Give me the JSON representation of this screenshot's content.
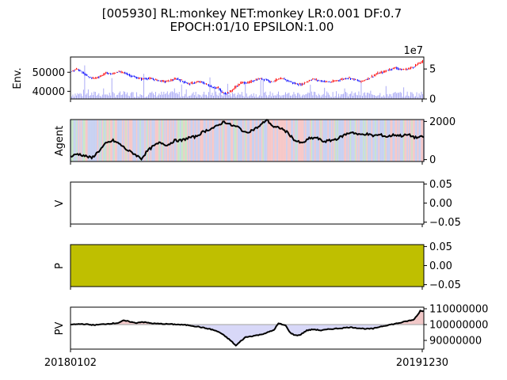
{
  "figure": {
    "title_line1": "[005930] RL:monkey NET:monkey LR:0.001 DF:0.7",
    "title_line2": "EPOCH:01/10 EPSILON:1.00",
    "x_start_label": "20180102",
    "x_end_label": "20191230"
  },
  "colors": {
    "candle_up": "#ff0000",
    "candle_down": "#0000ff",
    "volume": "#6666ee",
    "agent_line": "#000000",
    "buy_shade": "#f4b8b8",
    "sell_shade": "#b8c4ee",
    "hold_shade": "#b8e0b8",
    "policy_fill": "#bfbf00",
    "pv_above": "#f2c8c8",
    "pv_below": "#d8d8f8",
    "pv_base": "#b0b0b0"
  },
  "chart_data": [
    {
      "panel": "env",
      "type": "line",
      "ylabel": "Env.",
      "ylim": [
        36000,
        58000
      ],
      "yticks": [
        "50000",
        "40000"
      ],
      "ytick_values": [
        50000,
        40000
      ],
      "right_axis_offset": "1e7",
      "right_ylim": [
        0,
        7
      ],
      "right_yticks": [
        "5",
        "0"
      ],
      "right_ytick_values": [
        5,
        0
      ],
      "price_points": [
        [
          0,
          50500
        ],
        [
          5,
          51800
        ],
        [
          10,
          49800
        ],
        [
          15,
          47500
        ],
        [
          20,
          46800
        ],
        [
          25,
          47900
        ],
        [
          30,
          49700
        ],
        [
          35,
          49000
        ],
        [
          40,
          50300
        ],
        [
          45,
          49800
        ],
        [
          50,
          48400
        ],
        [
          55,
          47200
        ],
        [
          60,
          46500
        ],
        [
          65,
          46800
        ],
        [
          70,
          46300
        ],
        [
          75,
          45600
        ],
        [
          80,
          45100
        ],
        [
          85,
          45800
        ],
        [
          90,
          46600
        ],
        [
          95,
          45200
        ],
        [
          100,
          43900
        ],
        [
          105,
          44600
        ],
        [
          110,
          45000
        ],
        [
          115,
          43600
        ],
        [
          120,
          42100
        ],
        [
          125,
          41700
        ],
        [
          128,
          39400
        ],
        [
          131,
          38900
        ],
        [
          135,
          39800
        ],
        [
          140,
          42600
        ],
        [
          145,
          44700
        ],
        [
          150,
          44400
        ],
        [
          155,
          45700
        ],
        [
          160,
          46600
        ],
        [
          165,
          46300
        ],
        [
          170,
          44900
        ],
        [
          175,
          46200
        ],
        [
          180,
          46600
        ],
        [
          185,
          45200
        ],
        [
          190,
          44000
        ],
        [
          195,
          43500
        ],
        [
          200,
          45100
        ],
        [
          205,
          46500
        ],
        [
          210,
          45600
        ],
        [
          215,
          45200
        ],
        [
          220,
          44800
        ],
        [
          225,
          45600
        ],
        [
          230,
          46400
        ],
        [
          235,
          47100
        ],
        [
          240,
          46300
        ],
        [
          245,
          45000
        ],
        [
          250,
          46200
        ],
        [
          255,
          47800
        ],
        [
          260,
          49400
        ],
        [
          265,
          50200
        ],
        [
          270,
          51500
        ],
        [
          275,
          52400
        ],
        [
          280,
          51300
        ],
        [
          285,
          51700
        ],
        [
          290,
          52800
        ],
        [
          295,
          54800
        ],
        [
          299,
          55800
        ]
      ],
      "volume_peak_1e7": 5.6
    },
    {
      "panel": "agent",
      "type": "line",
      "ylabel": "Agent",
      "ylim": [
        -100,
        2100
      ],
      "yticks": [
        "2000",
        "0"
      ],
      "ytick_values": [
        2000,
        0
      ],
      "holdings_points": [
        [
          0,
          150
        ],
        [
          6,
          300
        ],
        [
          12,
          200
        ],
        [
          18,
          80
        ],
        [
          24,
          450
        ],
        [
          30,
          850
        ],
        [
          36,
          1000
        ],
        [
          42,
          800
        ],
        [
          48,
          500
        ],
        [
          54,
          300
        ],
        [
          60,
          50
        ],
        [
          65,
          450
        ],
        [
          70,
          700
        ],
        [
          76,
          900
        ],
        [
          82,
          750
        ],
        [
          88,
          1000
        ],
        [
          94,
          1000
        ],
        [
          100,
          1150
        ],
        [
          106,
          1200
        ],
        [
          112,
          1450
        ],
        [
          118,
          1600
        ],
        [
          124,
          1750
        ],
        [
          130,
          2000
        ],
        [
          136,
          1800
        ],
        [
          142,
          1700
        ],
        [
          148,
          1400
        ],
        [
          154,
          1550
        ],
        [
          160,
          1750
        ],
        [
          166,
          2100
        ],
        [
          172,
          1700
        ],
        [
          178,
          1650
        ],
        [
          184,
          1400
        ],
        [
          190,
          1000
        ],
        [
          196,
          850
        ],
        [
          202,
          1100
        ],
        [
          208,
          1150
        ],
        [
          214,
          950
        ],
        [
          220,
          1000
        ],
        [
          226,
          1100
        ],
        [
          232,
          1300
        ],
        [
          238,
          1450
        ],
        [
          244,
          1300
        ],
        [
          250,
          1350
        ],
        [
          256,
          1250
        ],
        [
          262,
          1300
        ],
        [
          268,
          1200
        ],
        [
          274,
          1300
        ],
        [
          280,
          1250
        ],
        [
          286,
          1300
        ],
        [
          292,
          1150
        ],
        [
          299,
          1200
        ]
      ]
    },
    {
      "panel": "value",
      "type": "line",
      "ylabel": "V",
      "ylim": [
        -0.055,
        0.055
      ],
      "yticks": [
        "0.05",
        "0.00",
        "−0.05"
      ],
      "ytick_values": [
        0.05,
        0,
        -0.05
      ],
      "values": []
    },
    {
      "panel": "policy",
      "type": "area",
      "ylabel": "P",
      "ylim": [
        -0.055,
        0.055
      ],
      "yticks": [
        "0.05",
        "0.00",
        "−0.05"
      ],
      "ytick_values": [
        0.05,
        0,
        -0.05
      ],
      "fill": "full"
    },
    {
      "panel": "pv",
      "type": "area",
      "ylabel": "PV",
      "ylim": [
        84500000,
        111000000
      ],
      "baseline": 100000000,
      "yticks": [
        "110000000",
        "100000000",
        "90000000"
      ],
      "ytick_values": [
        110000000,
        100000000,
        90000000
      ],
      "pv_points": [
        [
          0,
          100000000
        ],
        [
          10,
          100400000
        ],
        [
          20,
          99700000
        ],
        [
          30,
          100400000
        ],
        [
          40,
          101000000
        ],
        [
          45,
          102500000
        ],
        [
          50,
          101900000
        ],
        [
          55,
          101000000
        ],
        [
          60,
          101700000
        ],
        [
          65,
          101200000
        ],
        [
          70,
          100700000
        ],
        [
          80,
          100400000
        ],
        [
          90,
          100100000
        ],
        [
          100,
          99600000
        ],
        [
          110,
          98400000
        ],
        [
          120,
          96800000
        ],
        [
          126,
          95200000
        ],
        [
          132,
          92000000
        ],
        [
          136,
          89600000
        ],
        [
          140,
          86700000
        ],
        [
          144,
          89500000
        ],
        [
          148,
          92000000
        ],
        [
          154,
          92800000
        ],
        [
          160,
          93500000
        ],
        [
          166,
          94800000
        ],
        [
          172,
          96500000
        ],
        [
          176,
          100700000
        ],
        [
          182,
          99400000
        ],
        [
          186,
          94800000
        ],
        [
          190,
          93200000
        ],
        [
          194,
          93400000
        ],
        [
          200,
          96300000
        ],
        [
          206,
          97000000
        ],
        [
          212,
          96300000
        ],
        [
          218,
          97000000
        ],
        [
          224,
          97400000
        ],
        [
          230,
          97800000
        ],
        [
          236,
          98300000
        ],
        [
          240,
          98100000
        ],
        [
          244,
          97700000
        ],
        [
          250,
          97300000
        ],
        [
          256,
          97400000
        ],
        [
          262,
          98700000
        ],
        [
          268,
          99600000
        ],
        [
          274,
          100400000
        ],
        [
          280,
          101300000
        ],
        [
          286,
          102400000
        ],
        [
          290,
          102900000
        ],
        [
          294,
          106300000
        ],
        [
          296,
          108800000
        ],
        [
          299,
          108500000
        ]
      ]
    }
  ]
}
